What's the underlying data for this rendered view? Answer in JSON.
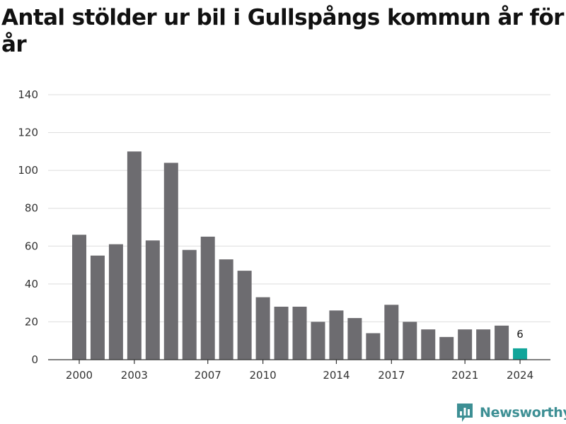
{
  "title": "Antal stölder ur bil i Gullspångs kommun år för år",
  "brand": {
    "name": "Newsworthy",
    "icon": "bar-chart-logo-icon",
    "color": "#3d8f94"
  },
  "colors": {
    "bar": "#6d6c70",
    "highlight": "#12a59a",
    "grid": "#dddddd",
    "axis": "#333333"
  },
  "chart_data": {
    "type": "bar",
    "title": "Antal stölder ur bil i Gullspångs kommun år för år",
    "xlabel": "",
    "ylabel": "",
    "categories": [
      "2000",
      "2001",
      "2002",
      "2003",
      "2004",
      "2005",
      "2006",
      "2007",
      "2008",
      "2009",
      "2010",
      "2011",
      "2012",
      "2013",
      "2014",
      "2015",
      "2016",
      "2017",
      "2018",
      "2019",
      "2020",
      "2021",
      "2022",
      "2023",
      "2024"
    ],
    "values": [
      66,
      55,
      61,
      110,
      63,
      104,
      58,
      65,
      53,
      47,
      33,
      28,
      28,
      20,
      26,
      22,
      14,
      29,
      20,
      16,
      12,
      16,
      16,
      18,
      6
    ],
    "ylim": [
      0,
      140
    ],
    "yticks": [
      0,
      20,
      40,
      60,
      80,
      100,
      120,
      140
    ],
    "xtick_labels": [
      "2000",
      "2003",
      "2007",
      "2010",
      "2014",
      "2017",
      "2021",
      "2024"
    ],
    "highlight": {
      "category": "2024",
      "label": "6"
    },
    "grid": true
  }
}
